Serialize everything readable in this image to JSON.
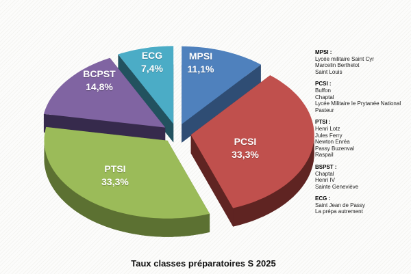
{
  "chart_data": {
    "type": "pie",
    "style": "3d-exploded",
    "title": "Taux classes préparatoires S 2025",
    "legend_position": "right",
    "slices": [
      {
        "label": "MPSI",
        "value": 11.1,
        "display": "11,1%",
        "color": "#4f81bd",
        "side": "#2f4d74"
      },
      {
        "label": "PCSI",
        "value": 33.3,
        "display": "33,3%",
        "color": "#c0504d",
        "side": "#5f2422"
      },
      {
        "label": "PTSI",
        "value": 33.3,
        "display": "33,3%",
        "color": "#9bbb59",
        "side": "#5c7132"
      },
      {
        "label": "BCPST",
        "value": 14.8,
        "display": "14,8%",
        "color": "#8064a2",
        "side": "#362a4c"
      },
      {
        "label": "ECG",
        "value": 7.4,
        "display": "7,4%",
        "color": "#4bacc6",
        "side": "#22525f"
      }
    ],
    "legend": [
      {
        "header": "MPSI :",
        "items": [
          "Lycée militaire Saint Cyr",
          "Marcelin Berthelot",
          "Saint Louis"
        ]
      },
      {
        "header": "PCSI :",
        "items": [
          "Buffon",
          "Chaptal",
          "Lycée Militaire le Prytanée National",
          "Pasteur"
        ]
      },
      {
        "header": "PTSI :",
        "items": [
          "Henri Lotz",
          "Jules Ferry",
          "Newton Enréa",
          "Passy Buzenval",
          "Raspail"
        ]
      },
      {
        "header": "BSPST :",
        "items": [
          "Chaptal",
          "Henri IV",
          "Sainte Geneviève"
        ]
      },
      {
        "header": "ECG :",
        "items": [
          "Saint Jean de Passy",
          "La prépa autrement"
        ]
      }
    ]
  }
}
